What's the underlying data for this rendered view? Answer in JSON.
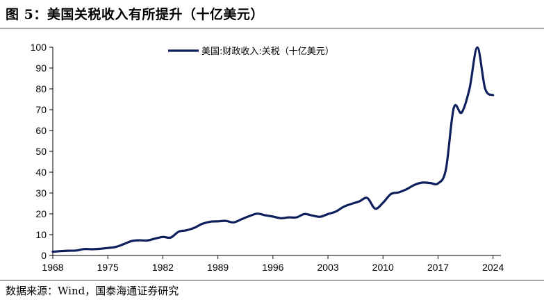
{
  "figure": {
    "title": "图 5：美国关税收入有所提升（十亿美元）",
    "source": "数据来源：Wind，国泰海通证券研究"
  },
  "colors": {
    "series": "#0d1f5c",
    "axis": "#000000"
  },
  "chart_data": {
    "type": "line",
    "title": "",
    "xlabel": "",
    "ylabel": "",
    "xlim": [
      1968,
      2025
    ],
    "ylim": [
      0,
      100
    ],
    "xticks": [
      1968,
      1975,
      1982,
      1989,
      1996,
      2003,
      2010,
      2017,
      2024
    ],
    "yticks": [
      0,
      10,
      20,
      30,
      40,
      50,
      60,
      70,
      80,
      90,
      100
    ],
    "grid": false,
    "legend_position": "top-center",
    "series": [
      {
        "name": "美国:财政收入:关税（十亿美元）",
        "x": [
          1968,
          1969,
          1970,
          1971,
          1972,
          1973,
          1974,
          1975,
          1976,
          1977,
          1978,
          1979,
          1980,
          1981,
          1982,
          1983,
          1984,
          1985,
          1986,
          1987,
          1988,
          1989,
          1990,
          1991,
          1992,
          1993,
          1994,
          1995,
          1996,
          1997,
          1998,
          1999,
          2000,
          2001,
          2002,
          2003,
          2004,
          2005,
          2006,
          2007,
          2008,
          2009,
          2010,
          2011,
          2012,
          2013,
          2014,
          2015,
          2016,
          2017,
          2018,
          2019,
          2020,
          2021,
          2022,
          2023,
          2024
        ],
        "values": [
          1.8,
          2.1,
          2.3,
          2.4,
          3.1,
          3.0,
          3.2,
          3.6,
          4.1,
          5.4,
          6.9,
          7.3,
          7.2,
          8.1,
          8.9,
          8.6,
          11.4,
          12.1,
          13.3,
          15.2,
          16.2,
          16.4,
          16.6,
          15.9,
          17.4,
          18.9,
          20.1,
          19.3,
          18.7,
          17.9,
          18.3,
          18.3,
          19.9,
          19.2,
          18.6,
          19.9,
          21.1,
          23.4,
          24.8,
          26.0,
          27.6,
          22.5,
          25.3,
          29.5,
          30.3,
          31.8,
          33.9,
          35.0,
          34.8,
          34.6,
          41.3,
          70.8,
          68.6,
          80.0,
          99.9,
          80.0,
          77.0
        ]
      }
    ]
  }
}
